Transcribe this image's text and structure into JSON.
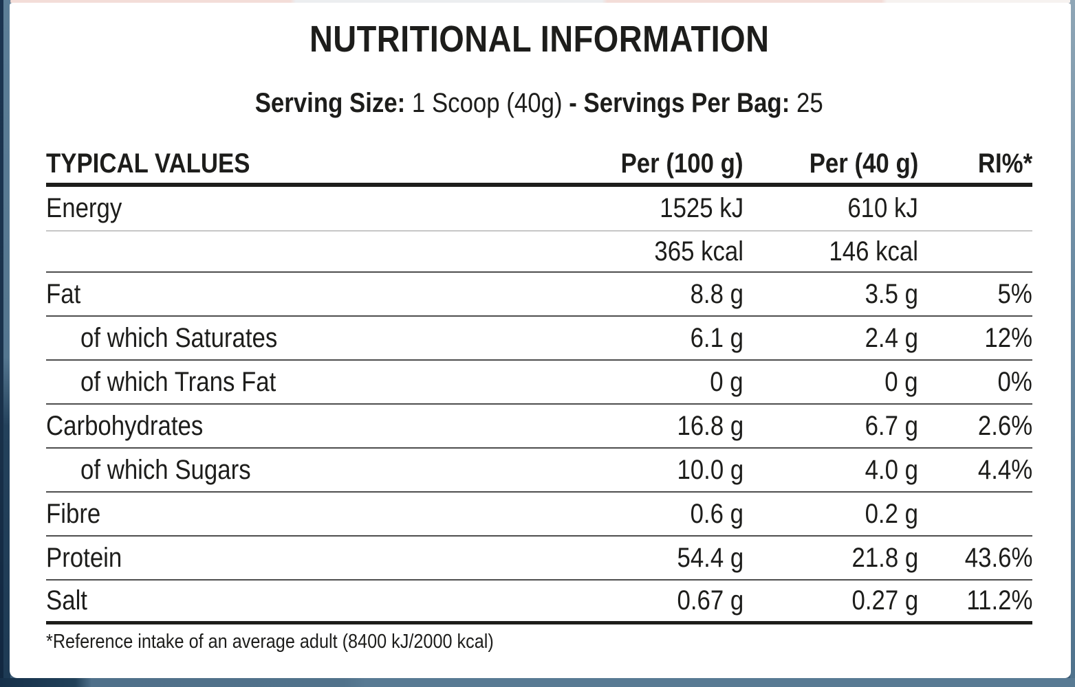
{
  "label": {
    "title": "NUTRITIONAL INFORMATION",
    "serving": {
      "size_label": "Serving Size:",
      "size_value": "1 Scoop (40g)",
      "separator": "-",
      "per_bag_label": "Servings Per Bag:",
      "per_bag_value": "25"
    },
    "table": {
      "headers": {
        "col_name": "TYPICAL VALUES",
        "col_per100": "Per (100 g)",
        "col_per40": "Per (40 g)",
        "col_ri": "RI%*"
      },
      "rows": [
        {
          "name": "Energy",
          "per100": "1525 kJ",
          "per40": "610 kJ",
          "ri": ""
        },
        {
          "name": "",
          "per100": "365 kcal",
          "per40": "146 kcal",
          "ri": ""
        },
        {
          "name": "Fat",
          "per100": "8.8 g",
          "per40": "3.5 g",
          "ri": "5%"
        },
        {
          "name": "of which Saturates",
          "per100": "6.1 g",
          "per40": "2.4 g",
          "ri": "12%"
        },
        {
          "name": "of which Trans Fat",
          "per100": "0 g",
          "per40": "0 g",
          "ri": "0%"
        },
        {
          "name": "Carbohydrates",
          "per100": "16.8 g",
          "per40": "6.7 g",
          "ri": "2.6%"
        },
        {
          "name": "of which Sugars",
          "per100": "10.0 g",
          "per40": "4.0 g",
          "ri": "4.4%"
        },
        {
          "name": "Fibre",
          "per100": "0.6 g",
          "per40": "0.2 g",
          "ri": ""
        },
        {
          "name": "Protein",
          "per100": "54.4 g",
          "per40": "21.8 g",
          "ri": "43.6%"
        },
        {
          "name": "Salt",
          "per100": "0.67 g",
          "per40": "0.27 g",
          "ri": "11.2%"
        }
      ],
      "footnote": "*Reference intake of an average adult (8400 kJ/2000 kcal)"
    },
    "colors": {
      "text": "#1d1d1b",
      "card_bg": "#ffffff",
      "edge_navy": "#1a324b",
      "edge_slate_top": "#5c7e97",
      "edge_slate_bottom": "#1d3a54",
      "bottom_strip": "#51728b",
      "thin_rule": "#4d4d4d",
      "faint_rule": "#c6c6c6"
    }
  }
}
